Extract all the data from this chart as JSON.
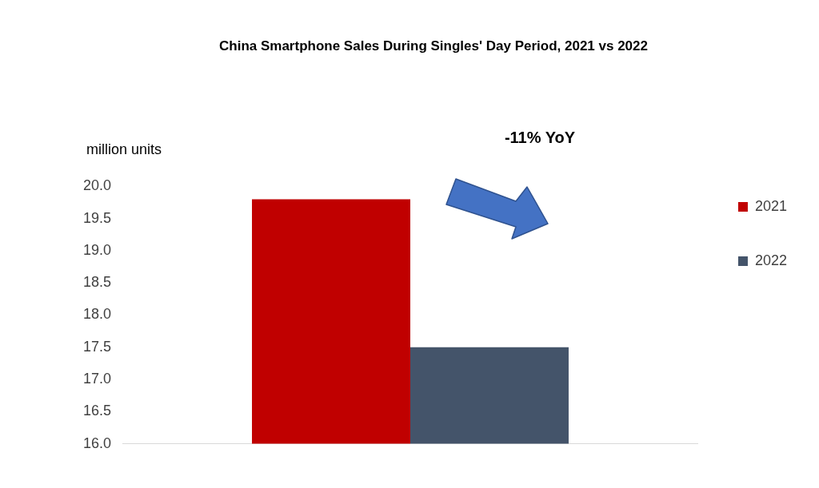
{
  "chart_data": {
    "type": "bar",
    "title": "China Smartphone Sales During Singles' Day Period, 2021 vs 2022",
    "ylabel": "million units",
    "categories": [
      null
    ],
    "series": [
      {
        "name": "2021",
        "color": "#c00000",
        "values": [
          19.8
        ]
      },
      {
        "name": "2022",
        "color": "#44546a",
        "values": [
          17.5
        ]
      }
    ],
    "ylim": [
      16,
      20
    ],
    "yticks": [
      {
        "value": 16,
        "label": "16.0"
      },
      {
        "value": 16.5,
        "label": "16.5"
      },
      {
        "value": 17,
        "label": "17.0"
      },
      {
        "value": 17.5,
        "label": "17.5"
      },
      {
        "value": 18,
        "label": "18.0"
      },
      {
        "value": 18.5,
        "label": "18.5"
      },
      {
        "value": 19,
        "label": "19.0"
      },
      {
        "value": 19.5,
        "label": "19.5"
      },
      {
        "value": 20,
        "label": "20.0"
      }
    ],
    "annotations": [
      "-11% YoY"
    ],
    "grid": false,
    "legend": "right"
  }
}
